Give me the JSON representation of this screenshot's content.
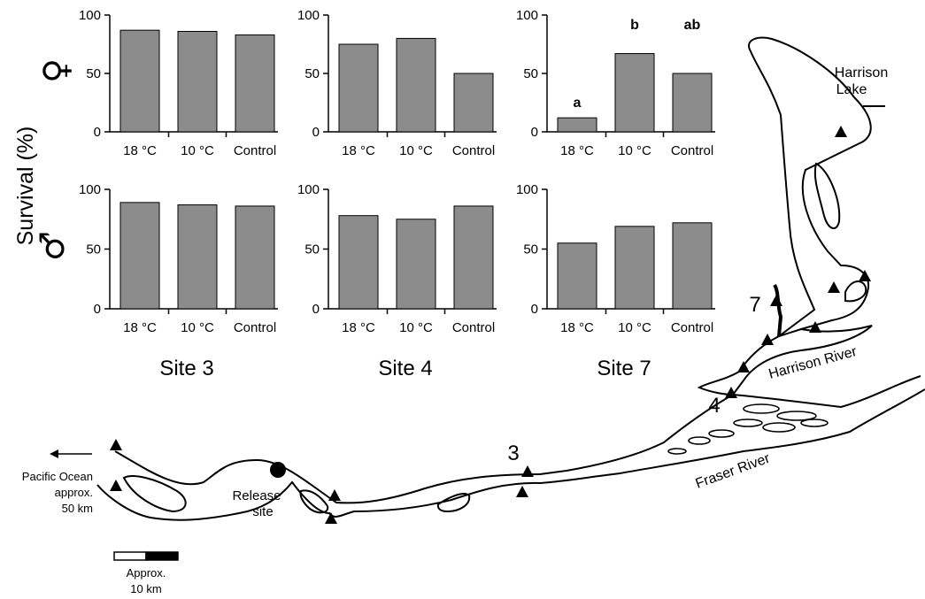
{
  "figure": {
    "y_axis_label": "Survival (%)",
    "female_symbol": "♀",
    "male_symbol": "♂"
  },
  "chart_data": [
    {
      "type": "bar",
      "panel": "site3-female",
      "categories": [
        "18 °C",
        "10 °C",
        "Control"
      ],
      "values": [
        87,
        86,
        83
      ],
      "ylim": [
        0,
        100
      ],
      "yticks": [
        0,
        50,
        100
      ],
      "bar_color": "#8c8c8c",
      "annotations": [
        "",
        "",
        ""
      ]
    },
    {
      "type": "bar",
      "panel": "site4-female",
      "categories": [
        "18 °C",
        "10 °C",
        "Control"
      ],
      "values": [
        75,
        80,
        50
      ],
      "ylim": [
        0,
        100
      ],
      "yticks": [
        0,
        50,
        100
      ],
      "bar_color": "#8c8c8c",
      "annotations": [
        "",
        "",
        ""
      ]
    },
    {
      "type": "bar",
      "panel": "site7-female",
      "categories": [
        "18 °C",
        "10 °C",
        "Control"
      ],
      "values": [
        12,
        67,
        50
      ],
      "ylim": [
        0,
        100
      ],
      "yticks": [
        0,
        50,
        100
      ],
      "bar_color": "#8c8c8c",
      "annotations": [
        "a",
        "b",
        "ab"
      ]
    },
    {
      "type": "bar",
      "panel": "site3-male",
      "categories": [
        "18 °C",
        "10 °C",
        "Control"
      ],
      "values": [
        89,
        87,
        86
      ],
      "ylim": [
        0,
        100
      ],
      "yticks": [
        0,
        50,
        100
      ],
      "bar_color": "#8c8c8c",
      "annotations": [
        "",
        "",
        ""
      ],
      "site_label": "Site 3"
    },
    {
      "type": "bar",
      "panel": "site4-male",
      "categories": [
        "18 °C",
        "10 °C",
        "Control"
      ],
      "values": [
        78,
        75,
        86
      ],
      "ylim": [
        0,
        100
      ],
      "yticks": [
        0,
        50,
        100
      ],
      "bar_color": "#8c8c8c",
      "annotations": [
        "",
        "",
        ""
      ],
      "site_label": "Site 4"
    },
    {
      "type": "bar",
      "panel": "site7-male",
      "categories": [
        "18 °C",
        "10 °C",
        "Control"
      ],
      "values": [
        55,
        69,
        72
      ],
      "ylim": [
        0,
        100
      ],
      "yticks": [
        0,
        50,
        100
      ],
      "bar_color": "#8c8c8c",
      "annotations": [
        "",
        "",
        ""
      ],
      "site_label": "Site 7"
    }
  ],
  "map": {
    "harrison_lake_line1": "Harrison",
    "harrison_lake_line2": "Lake",
    "harrison_river": "Harrison River",
    "fraser_river": "Fraser River",
    "release_line1": "Release",
    "release_line2": "site",
    "ocean_line1": "Pacific Ocean",
    "ocean_line2": "approx.",
    "ocean_line3": "50 km",
    "scale_line1": "Approx.",
    "scale_line2": "10 km",
    "site3": "3",
    "site4": "4",
    "site7": "7"
  }
}
